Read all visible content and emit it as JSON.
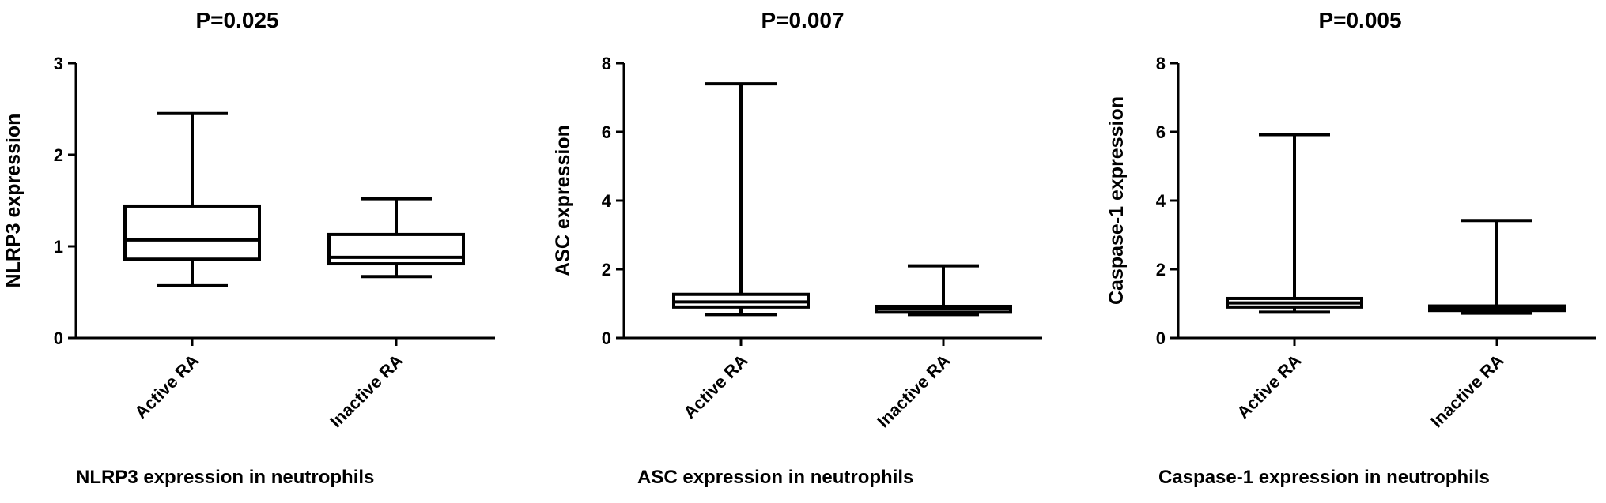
{
  "chart_data": [
    {
      "type": "box",
      "title": "P=0.025",
      "ylabel": "NLRP3 expression",
      "xlabel": "NLRP3 expression in neutrophils",
      "ylim": [
        0,
        3
      ],
      "yticks": [
        "0",
        "1",
        "2",
        "3"
      ],
      "categories": [
        "Active RA",
        "Inactive RA"
      ],
      "boxes": [
        {
          "min": 0.57,
          "q1": 0.86,
          "median": 1.07,
          "q3": 1.44,
          "max": 2.45
        },
        {
          "min": 0.67,
          "q1": 0.81,
          "median": 0.88,
          "q3": 1.13,
          "max": 1.52
        }
      ]
    },
    {
      "type": "box",
      "title": "P=0.007",
      "ylabel": "ASC expression",
      "xlabel": "ASC expression in neutrophils",
      "ylim": [
        0,
        8
      ],
      "yticks": [
        "0",
        "2",
        "4",
        "6",
        "8"
      ],
      "categories": [
        "Active RA",
        "Inactive RA"
      ],
      "boxes": [
        {
          "min": 0.68,
          "q1": 0.9,
          "median": 1.05,
          "q3": 1.27,
          "max": 7.4
        },
        {
          "min": 0.68,
          "q1": 0.75,
          "median": 0.85,
          "q3": 0.92,
          "max": 2.1
        }
      ]
    },
    {
      "type": "box",
      "title": "P=0.005",
      "ylabel": "Caspase-1 expression",
      "xlabel": "Caspase-1 expression in neutrophils",
      "ylim": [
        0,
        8
      ],
      "yticks": [
        "0",
        "2",
        "4",
        "6",
        "8"
      ],
      "categories": [
        "Active RA",
        "Inactive RA"
      ],
      "boxes": [
        {
          "min": 0.75,
          "q1": 0.9,
          "median": 1.02,
          "q3": 1.15,
          "max": 5.92
        },
        {
          "min": 0.72,
          "q1": 0.8,
          "median": 0.88,
          "q3": 0.93,
          "max": 3.42
        }
      ]
    }
  ]
}
